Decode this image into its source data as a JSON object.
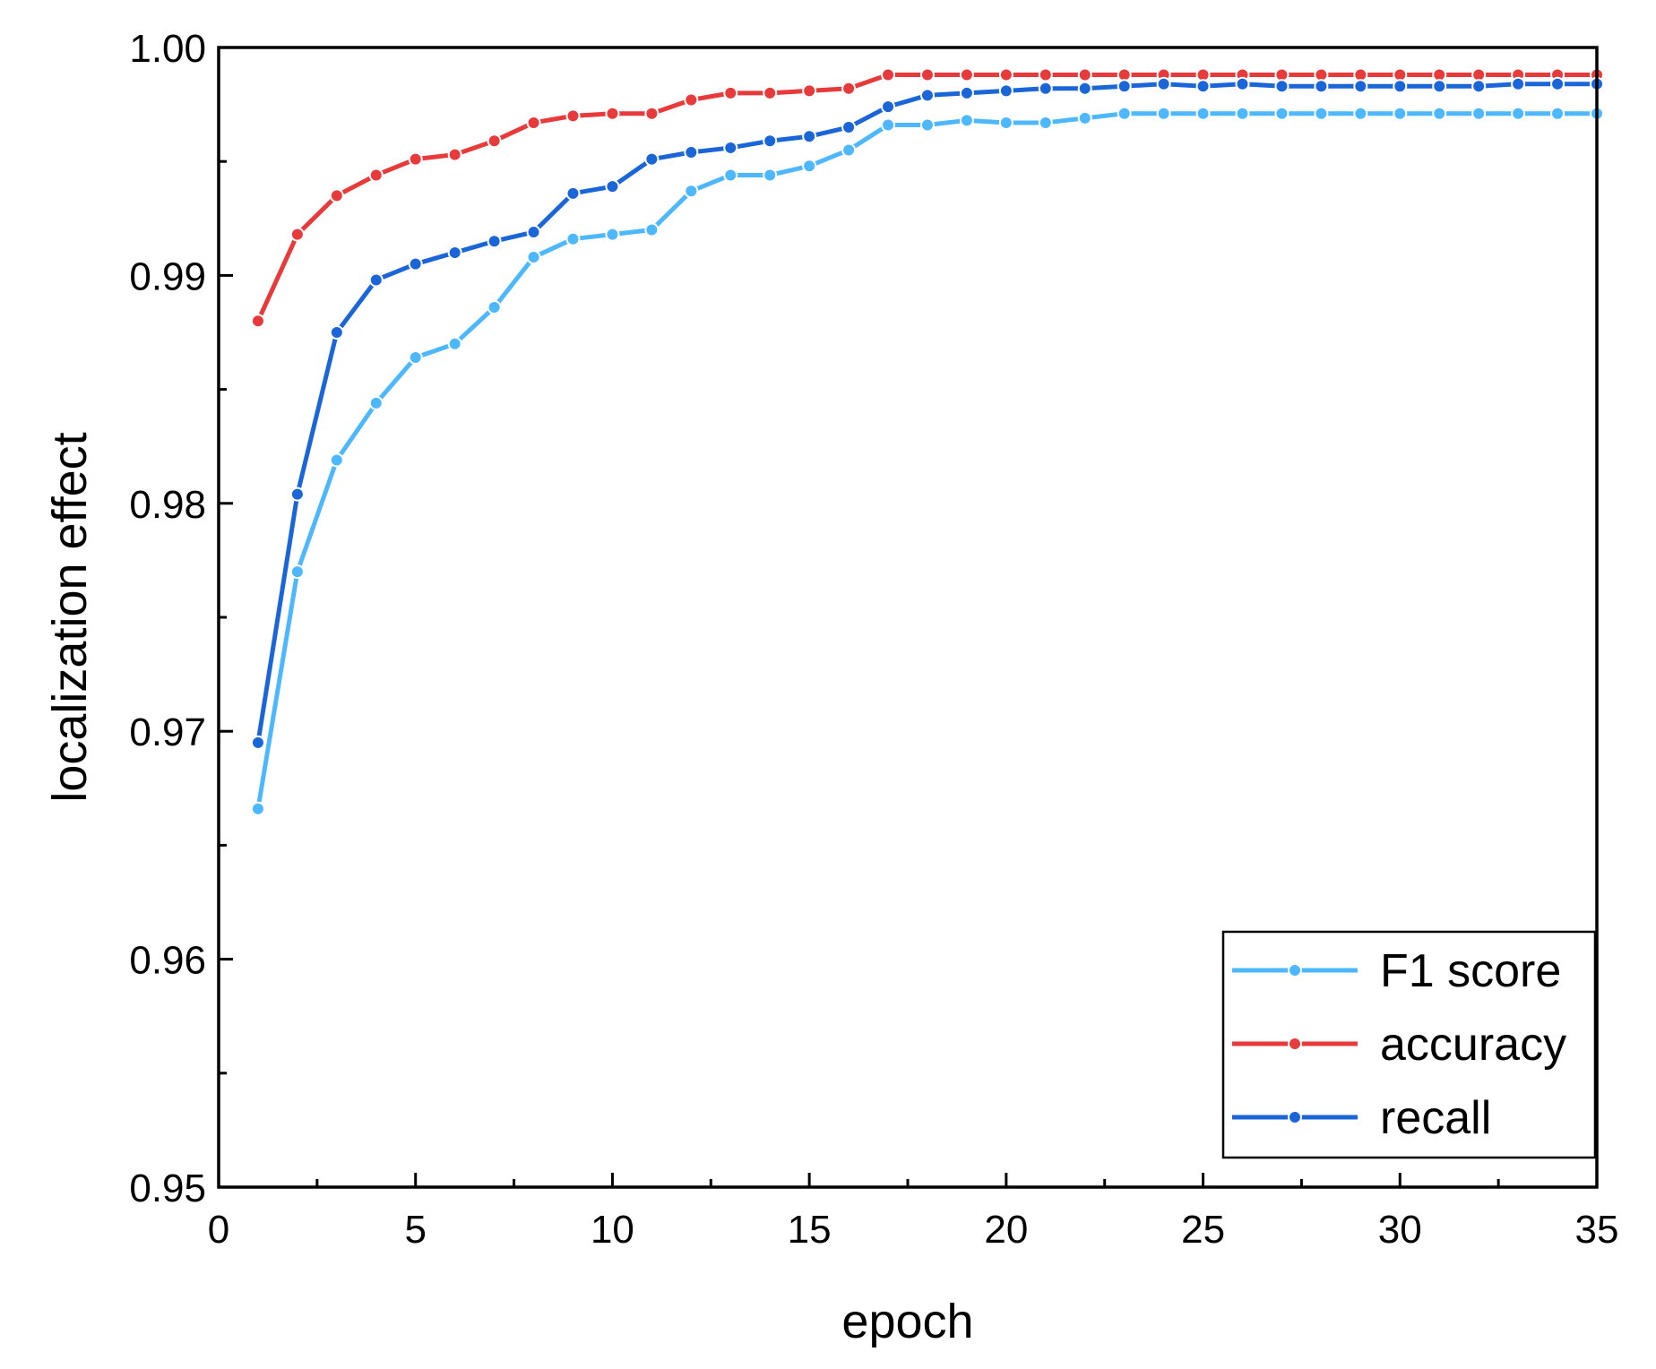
{
  "chart_data": {
    "type": "line",
    "title": "",
    "xlabel": "epoch",
    "ylabel": "localization effect",
    "xlim": [
      0,
      35
    ],
    "ylim": [
      0.95,
      1.0
    ],
    "x_ticks": [
      0,
      5,
      10,
      15,
      20,
      25,
      30,
      35
    ],
    "x_tick_labels": [
      "0",
      "5",
      "10",
      "15",
      "20",
      "25",
      "30",
      "35"
    ],
    "y_ticks": [
      0.95,
      0.96,
      0.97,
      0.98,
      0.99,
      1.0
    ],
    "y_tick_labels": [
      "0.95",
      "0.96",
      "0.97",
      "0.98",
      "0.99",
      "1.00"
    ],
    "grid": false,
    "legend_position": "bottom-right",
    "x": [
      1,
      2,
      3,
      4,
      5,
      6,
      7,
      8,
      9,
      10,
      11,
      12,
      13,
      14,
      15,
      16,
      17,
      18,
      19,
      20,
      21,
      22,
      23,
      24,
      25,
      26,
      27,
      28,
      29,
      30,
      31,
      32,
      33,
      34,
      35
    ],
    "series": [
      {
        "name": "F1 score",
        "color": "#4db8ff",
        "values": [
          0.9666,
          0.977,
          0.9819,
          0.9844,
          0.9864,
          0.987,
          0.9886,
          0.9908,
          0.9916,
          0.9918,
          0.992,
          0.9937,
          0.9944,
          0.9944,
          0.9948,
          0.9955,
          0.9966,
          0.9966,
          0.9968,
          0.9967,
          0.9967,
          0.9969,
          0.9971,
          0.9971,
          0.9971,
          0.9971,
          0.9971,
          0.9971,
          0.9971,
          0.9971,
          0.9971,
          0.9971,
          0.9971,
          0.9971,
          0.9971
        ]
      },
      {
        "name": "accuracy",
        "color": "#e83a3a",
        "values": [
          0.988,
          0.9918,
          0.9935,
          0.9944,
          0.9951,
          0.9953,
          0.9959,
          0.9967,
          0.997,
          0.9971,
          0.9971,
          0.9977,
          0.998,
          0.998,
          0.9981,
          0.9982,
          0.9988,
          0.9988,
          0.9988,
          0.9988,
          0.9988,
          0.9988,
          0.9988,
          0.9988,
          0.9988,
          0.9988,
          0.9988,
          0.9988,
          0.9988,
          0.9988,
          0.9988,
          0.9988,
          0.9988,
          0.9988,
          0.9988
        ]
      },
      {
        "name": "recall",
        "color": "#1a66d9",
        "values": [
          0.9695,
          0.9804,
          0.9875,
          0.9898,
          0.9905,
          0.991,
          0.9915,
          0.9919,
          0.9936,
          0.9939,
          0.9951,
          0.9954,
          0.9956,
          0.9959,
          0.9961,
          0.9965,
          0.9974,
          0.9979,
          0.998,
          0.9981,
          0.9982,
          0.9982,
          0.9983,
          0.9984,
          0.9983,
          0.9984,
          0.9983,
          0.9983,
          0.9983,
          0.9983,
          0.9983,
          0.9983,
          0.9984,
          0.9984,
          0.9984
        ]
      }
    ]
  }
}
